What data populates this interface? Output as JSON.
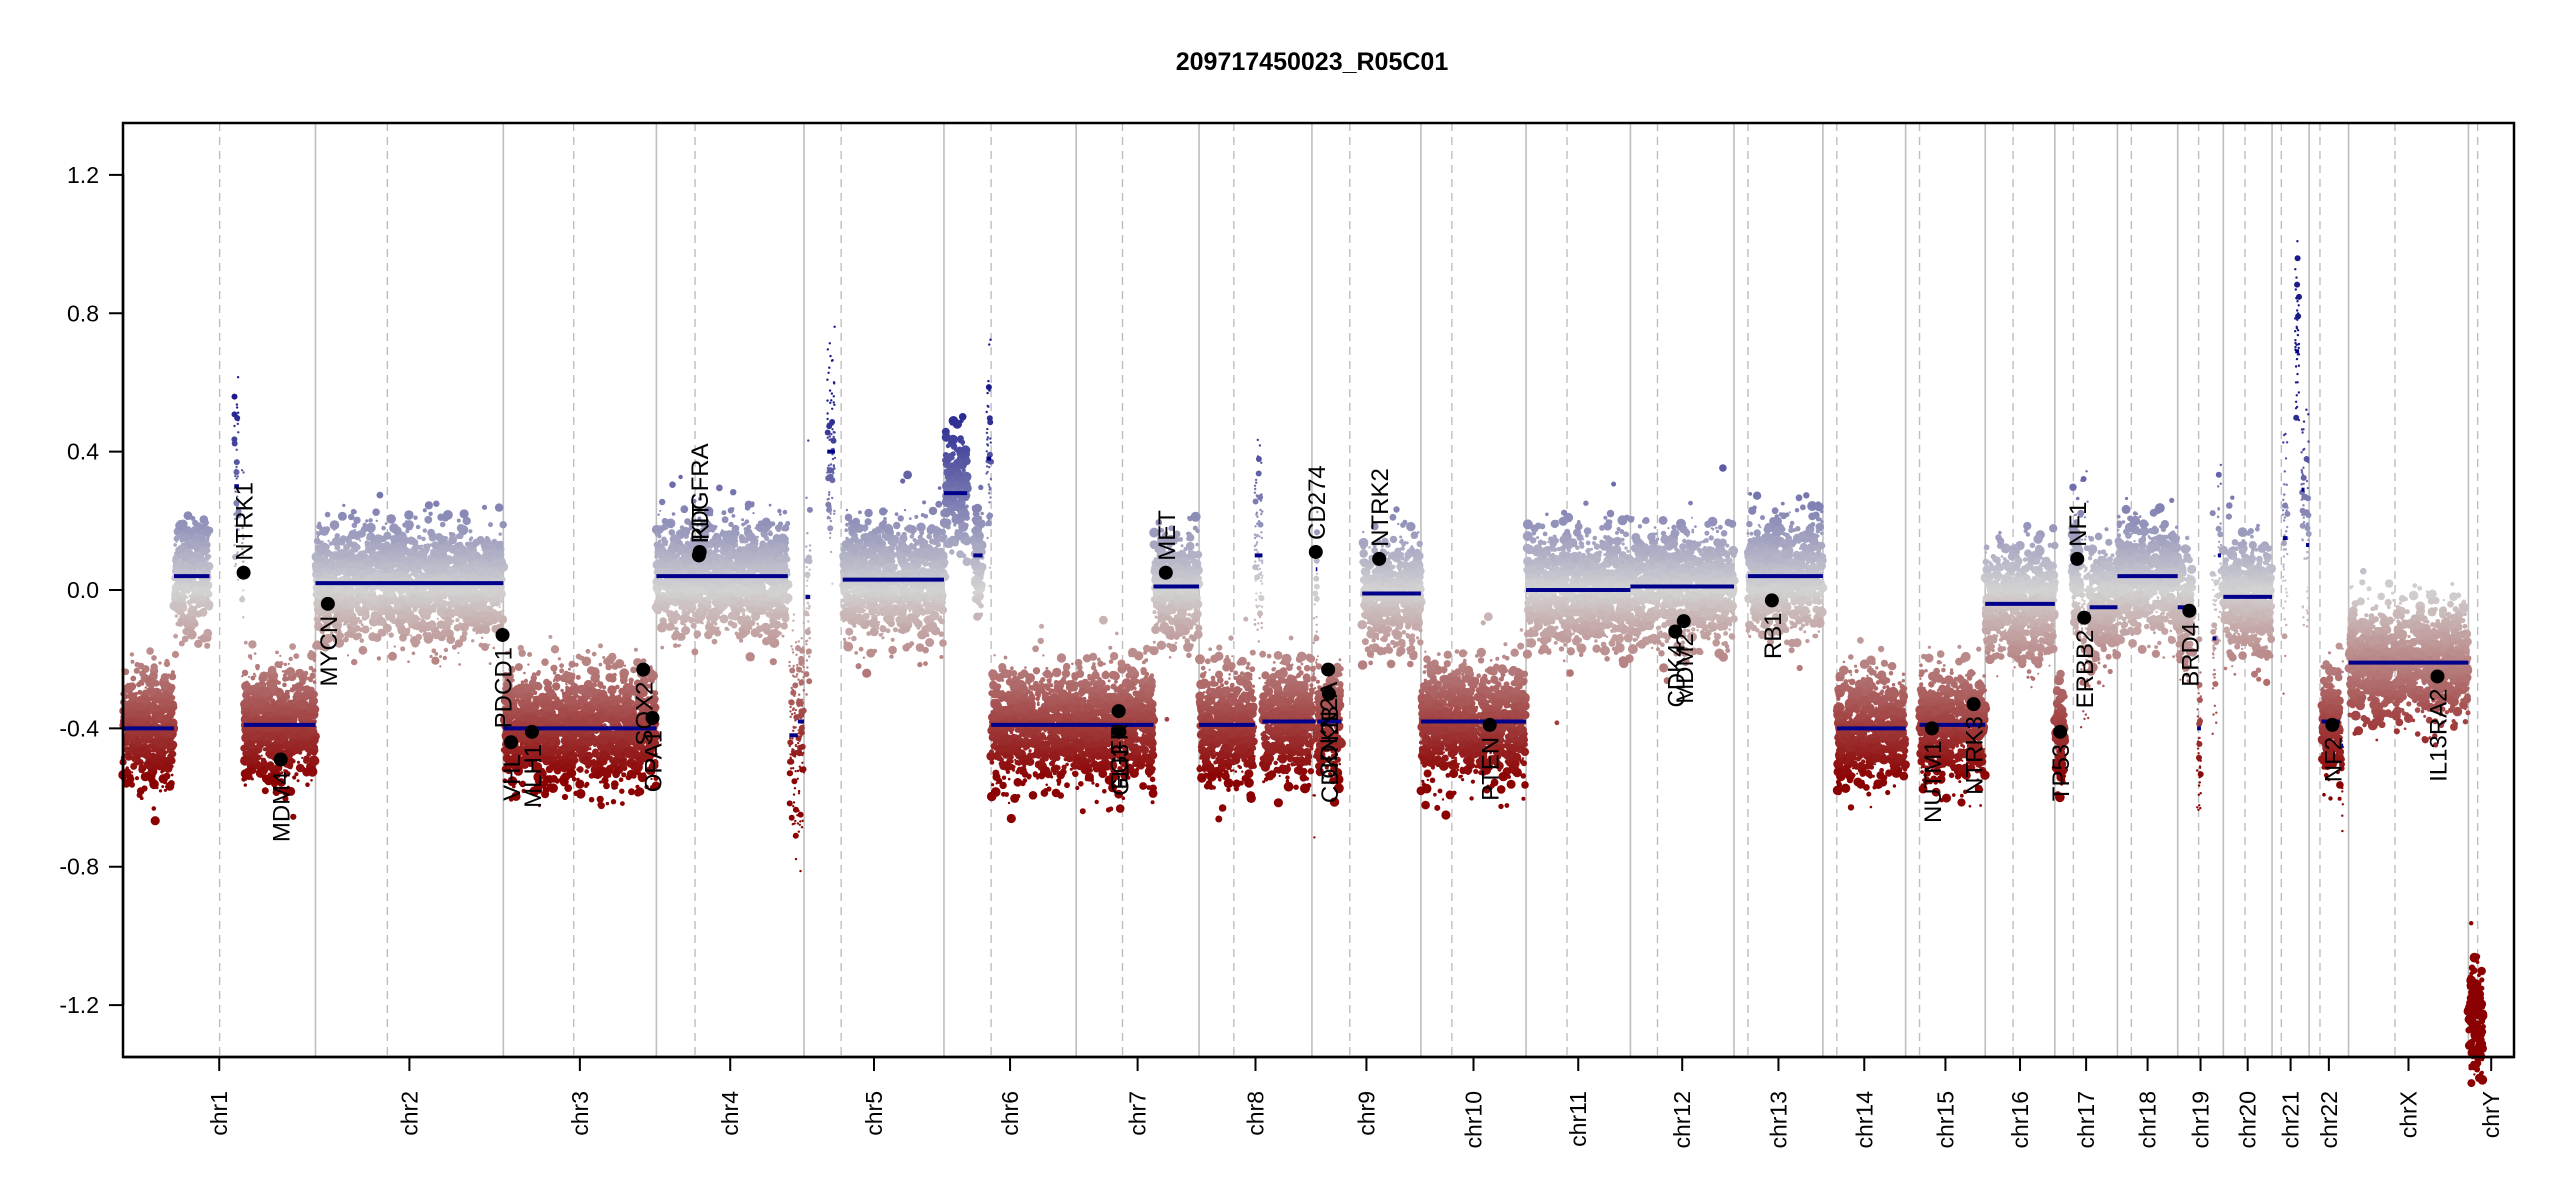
{
  "chart_data": {
    "type": "scatter",
    "title": "209717450023_R05C01",
    "xlabel": "",
    "ylabel": "",
    "ylim": [
      -1.35,
      1.35
    ],
    "yticks": [
      1.2,
      0.8,
      0.4,
      0.0,
      -0.4,
      -0.8,
      -1.2
    ],
    "ytick_labels": [
      "1.2",
      "0.8",
      "0.4",
      "0.0",
      "-0.4",
      "-0.8",
      "-1.2"
    ],
    "grid": false,
    "legend": "none",
    "colors": {
      "gain": "#1a1a8c",
      "neutral": "#d3d3d3",
      "loss": "#8b0000",
      "segment": "#00008b",
      "gene_point": "#000000",
      "chrom_boundary": "#bebebe",
      "centromere": "#bebebe"
    },
    "chromosomes": [
      {
        "name": "chr1",
        "length": 249,
        "centromere": 125
      },
      {
        "name": "chr2",
        "length": 243,
        "centromere": 93
      },
      {
        "name": "chr3",
        "length": 198,
        "centromere": 91
      },
      {
        "name": "chr4",
        "length": 191,
        "centromere": 50
      },
      {
        "name": "chr5",
        "length": 181,
        "centromere": 48
      },
      {
        "name": "chr6",
        "length": 171,
        "centromere": 61
      },
      {
        "name": "chr7",
        "length": 159,
        "centromere": 60
      },
      {
        "name": "chr8",
        "length": 146,
        "centromere": 45
      },
      {
        "name": "chr9",
        "length": 141,
        "centromere": 49
      },
      {
        "name": "chr10",
        "length": 136,
        "centromere": 40
      },
      {
        "name": "chr11",
        "length": 135,
        "centromere": 53
      },
      {
        "name": "chr12",
        "length": 134,
        "centromere": 35
      },
      {
        "name": "chr13",
        "length": 115,
        "centromere": 18
      },
      {
        "name": "chr14",
        "length": 107,
        "centromere": 18
      },
      {
        "name": "chr15",
        "length": 103,
        "centromere": 18
      },
      {
        "name": "chr16",
        "length": 90,
        "centromere": 36
      },
      {
        "name": "chr17",
        "length": 81,
        "centromere": 24
      },
      {
        "name": "chr18",
        "length": 78,
        "centromere": 18
      },
      {
        "name": "chr19",
        "length": 59,
        "centromere": 27
      },
      {
        "name": "chr20",
        "length": 63,
        "centromere": 28
      },
      {
        "name": "chr21",
        "length": 48,
        "centromere": 12
      },
      {
        "name": "chr22",
        "length": 51,
        "centromere": 14
      },
      {
        "name": "chrX",
        "length": 155,
        "centromere": 60
      },
      {
        "name": "chrY",
        "length": 59,
        "centromere": 12
      }
    ],
    "segments": [
      {
        "chr": "chr1",
        "start": 0,
        "end": 66,
        "value": -0.4
      },
      {
        "chr": "chr1",
        "start": 66,
        "end": 112,
        "value": 0.04
      },
      {
        "chr": "chr1",
        "start": 144,
        "end": 150,
        "value": 0.3
      },
      {
        "chr": "chr1",
        "start": 154,
        "end": 156,
        "value": 0.06
      },
      {
        "chr": "chr1",
        "start": 156,
        "end": 249,
        "value": -0.39
      },
      {
        "chr": "chr2",
        "start": 0,
        "end": 243,
        "value": 0.02
      },
      {
        "chr": "chr3",
        "start": 0,
        "end": 198,
        "value": -0.4
      },
      {
        "chr": "chr4",
        "start": 0,
        "end": 170,
        "value": 0.04
      },
      {
        "chr": "chr4",
        "start": 172,
        "end": 183,
        "value": -0.42
      },
      {
        "chr": "chr4",
        "start": 183,
        "end": 191,
        "value": -0.38
      },
      {
        "chr": "chr5",
        "start": 2,
        "end": 8,
        "value": -0.02
      },
      {
        "chr": "chr5",
        "start": 30,
        "end": 40,
        "value": 0.4
      },
      {
        "chr": "chr5",
        "start": 50,
        "end": 181,
        "value": 0.03
      },
      {
        "chr": "chr6",
        "start": 0,
        "end": 30,
        "value": 0.28
      },
      {
        "chr": "chr6",
        "start": 38,
        "end": 50,
        "value": 0.1
      },
      {
        "chr": "chr6",
        "start": 55,
        "end": 61,
        "value": 0.38
      },
      {
        "chr": "chr6",
        "start": 61,
        "end": 171,
        "value": -0.39
      },
      {
        "chr": "chr7",
        "start": 0,
        "end": 55,
        "value": -0.39
      },
      {
        "chr": "chr7",
        "start": 55,
        "end": 100,
        "value": -0.39
      },
      {
        "chr": "chr7",
        "start": 100,
        "end": 159,
        "value": 0.01
      },
      {
        "chr": "chr8",
        "start": 0,
        "end": 72,
        "value": -0.39
      },
      {
        "chr": "chr8",
        "start": 72,
        "end": 82,
        "value": 0.1
      },
      {
        "chr": "chr8",
        "start": 82,
        "end": 146,
        "value": -0.38
      },
      {
        "chr": "chr9",
        "start": 0,
        "end": 5,
        "value": -0.38
      },
      {
        "chr": "chr9",
        "start": 5,
        "end": 7,
        "value": 0.06
      },
      {
        "chr": "chr9",
        "start": 7,
        "end": 38,
        "value": -0.38
      },
      {
        "chr": "chr9",
        "start": 65,
        "end": 141,
        "value": -0.01
      },
      {
        "chr": "chr10",
        "start": 0,
        "end": 136,
        "value": -0.38
      },
      {
        "chr": "chr11",
        "start": 0,
        "end": 135,
        "value": 0.0
      },
      {
        "chr": "chr12",
        "start": 0,
        "end": 134,
        "value": 0.01
      },
      {
        "chr": "chr13",
        "start": 18,
        "end": 115,
        "value": 0.04
      },
      {
        "chr": "chr14",
        "start": 18,
        "end": 107,
        "value": -0.4
      },
      {
        "chr": "chr15",
        "start": 18,
        "end": 103,
        "value": -0.39
      },
      {
        "chr": "chr16",
        "start": 0,
        "end": 90,
        "value": -0.04
      },
      {
        "chr": "chr17",
        "start": 0,
        "end": 13,
        "value": -0.41
      },
      {
        "chr": "chr17",
        "start": 22,
        "end": 34,
        "value": 0.08
      },
      {
        "chr": "chr17",
        "start": 34,
        "end": 45,
        "value": -0.07
      },
      {
        "chr": "chr17",
        "start": 45,
        "end": 81,
        "value": -0.05
      },
      {
        "chr": "chr18",
        "start": 0,
        "end": 78,
        "value": 0.04
      },
      {
        "chr": "chr19",
        "start": 0,
        "end": 20,
        "value": -0.05
      },
      {
        "chr": "chr19",
        "start": 25,
        "end": 30,
        "value": -0.4
      },
      {
        "chr": "chr19",
        "start": 45,
        "end": 50,
        "value": -0.14
      },
      {
        "chr": "chr19",
        "start": 52,
        "end": 56,
        "value": 0.1
      },
      {
        "chr": "chr20",
        "start": 0,
        "end": 63,
        "value": -0.02
      },
      {
        "chr": "chr21",
        "start": 14,
        "end": 20,
        "value": 0.15
      },
      {
        "chr": "chr21",
        "start": 30,
        "end": 35,
        "value": 0.69
      },
      {
        "chr": "chr21",
        "start": 38,
        "end": 42,
        "value": 0.29
      },
      {
        "chr": "chr21",
        "start": 44,
        "end": 48,
        "value": 0.13
      },
      {
        "chr": "chr22",
        "start": 16,
        "end": 40,
        "value": -0.38
      },
      {
        "chr": "chr22",
        "start": 42,
        "end": 44,
        "value": -0.45
      },
      {
        "chr": "chrX",
        "start": 0,
        "end": 155,
        "value": -0.21
      },
      {
        "chr": "chrY",
        "start": 0,
        "end": 20,
        "value": -1.25
      }
    ],
    "genes": [
      {
        "name": "NTRK1",
        "chr": "chr1",
        "pos": 156,
        "value": 0.05,
        "label_side": "above"
      },
      {
        "name": "MDM4",
        "chr": "chr1",
        "pos": 204,
        "value": -0.49,
        "label_side": "below"
      },
      {
        "name": "MYCN",
        "chr": "chr2",
        "pos": 16,
        "value": -0.04,
        "label_side": "below"
      },
      {
        "name": "PDCD1",
        "chr": "chr2",
        "pos": 242,
        "value": -0.13,
        "label_side": "below"
      },
      {
        "name": "VHL",
        "chr": "chr3",
        "pos": 10,
        "value": -0.44,
        "label_side": "below"
      },
      {
        "name": "MLH1",
        "chr": "chr3",
        "pos": 37,
        "value": -0.41,
        "label_side": "below"
      },
      {
        "name": "SOX2",
        "chr": "chr3",
        "pos": 181,
        "value": -0.23,
        "label_side": "below"
      },
      {
        "name": "OPA1",
        "chr": "chr3",
        "pos": 193,
        "value": -0.37,
        "label_side": "below"
      },
      {
        "name": "PDGFRA",
        "chr": "chr4",
        "pos": 55,
        "value": 0.1,
        "label_side": "above"
      },
      {
        "name": "KIT",
        "chr": "chr4",
        "pos": 56,
        "value": 0.11,
        "label_side": "above"
      },
      {
        "name": "EGFR",
        "chr": "chr7",
        "pos": 55,
        "value": -0.35,
        "label_side": "below"
      },
      {
        "name": "GLI3",
        "chr": "chr7",
        "pos": 56,
        "value": -0.41,
        "label_side": "below"
      },
      {
        "name": "MET",
        "chr": "chr7",
        "pos": 116,
        "value": 0.05,
        "label_side": "above"
      },
      {
        "name": "CD274",
        "chr": "chr9",
        "pos": 5,
        "value": 0.11,
        "label_side": "above"
      },
      {
        "name": "CDKN2A",
        "chr": "chr9",
        "pos": 21,
        "value": -0.23,
        "label_side": "below"
      },
      {
        "name": "CDKN2B",
        "chr": "chr9",
        "pos": 22,
        "value": -0.3,
        "label_side": "below"
      },
      {
        "name": "NTRK2",
        "chr": "chr9",
        "pos": 87,
        "value": 0.09,
        "label_side": "above"
      },
      {
        "name": "PTEN",
        "chr": "chr10",
        "pos": 89,
        "value": -0.39,
        "label_side": "below"
      },
      {
        "name": "CDK4",
        "chr": "chr12",
        "pos": 58,
        "value": -0.12,
        "label_side": "below"
      },
      {
        "name": "MDM2",
        "chr": "chr12",
        "pos": 69,
        "value": -0.09,
        "label_side": "below"
      },
      {
        "name": "RB1",
        "chr": "chr13",
        "pos": 49,
        "value": -0.03,
        "label_side": "below"
      },
      {
        "name": "NUTM1",
        "chr": "chr15",
        "pos": 34,
        "value": -0.4,
        "label_side": "below"
      },
      {
        "name": "NTRK3",
        "chr": "chr15",
        "pos": 88,
        "value": -0.33,
        "label_side": "below"
      },
      {
        "name": "TP53",
        "chr": "chr17",
        "pos": 7,
        "value": -0.41,
        "label_side": "below"
      },
      {
        "name": "NF1",
        "chr": "chr17",
        "pos": 29,
        "value": 0.09,
        "label_side": "above"
      },
      {
        "name": "ERBB2",
        "chr": "chr17",
        "pos": 38,
        "value": -0.08,
        "label_side": "below"
      },
      {
        "name": "BRD4",
        "chr": "chr19",
        "pos": 15,
        "value": -0.06,
        "label_side": "below"
      },
      {
        "name": "NF2",
        "chr": "chr22",
        "pos": 30,
        "value": -0.39,
        "label_side": "below"
      },
      {
        "name": "IL13RA2",
        "chr": "chrX",
        "pos": 115,
        "value": -0.25,
        "label_side": "below"
      }
    ],
    "probe_noise_sd": 0.08
  }
}
